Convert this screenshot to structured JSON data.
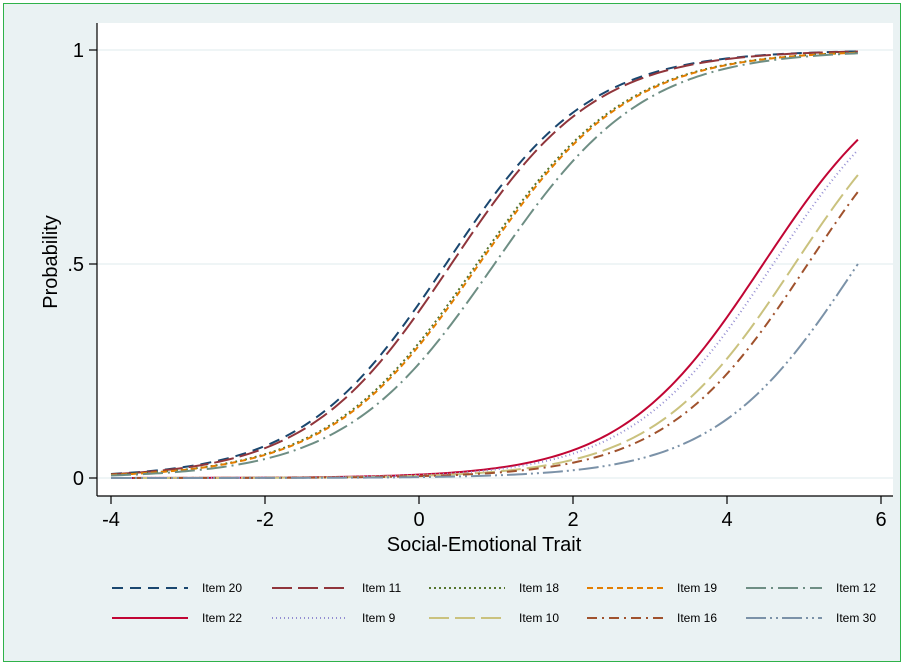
{
  "chart_data": {
    "type": "line",
    "title": "",
    "xlabel": "Social-Emotional Trait",
    "ylabel": "Probability",
    "xlim": [
      -4,
      5.7
    ],
    "ylim": [
      0,
      1
    ],
    "x_ticks": [
      -4,
      -2,
      0,
      2,
      4,
      6
    ],
    "x_tick_labels": [
      "-4",
      "-2",
      "0",
      "2",
      "4",
      "6"
    ],
    "y_ticks": [
      0,
      0.5,
      1
    ],
    "y_tick_labels": [
      "0",
      ".5",
      "1"
    ],
    "grid": "horizontal",
    "legend_position": "bottom",
    "series": [
      {
        "name": "Item 20",
        "color": "#1a476f",
        "dash": "dash",
        "a": 1.07,
        "b": 0.35
      },
      {
        "name": "Item 11",
        "color": "#90353b",
        "dash": "longdash",
        "a": 1.07,
        "b": 0.42
      },
      {
        "name": "Item 18",
        "color": "#55752f",
        "dash": "dot",
        "a": 1.03,
        "b": 0.75
      },
      {
        "name": "Item 19",
        "color": "#e37e00",
        "dash": "shortdash",
        "a": 1.03,
        "b": 0.78
      },
      {
        "name": "Item 12",
        "color": "#6e8e84",
        "dash": "longdashdot",
        "a": 1.03,
        "b": 0.98
      },
      {
        "name": "Item 22",
        "color": "#c10534",
        "dash": "solid",
        "a": 1.08,
        "b": 4.47
      },
      {
        "name": "Item 9",
        "color": "#938dd2",
        "dash": "fine-dot",
        "a": 1.08,
        "b": 4.6
      },
      {
        "name": "Item 10",
        "color": "#cac27e",
        "dash": "longdash",
        "a": 1.08,
        "b": 4.88
      },
      {
        "name": "Item 16",
        "color": "#a0522d",
        "dash": "dashdot",
        "a": 1.08,
        "b": 5.05
      },
      {
        "name": "Item 30",
        "color": "#7b92a8",
        "dash": "longdashdotdot",
        "a": 1.08,
        "b": 5.7
      }
    ]
  }
}
